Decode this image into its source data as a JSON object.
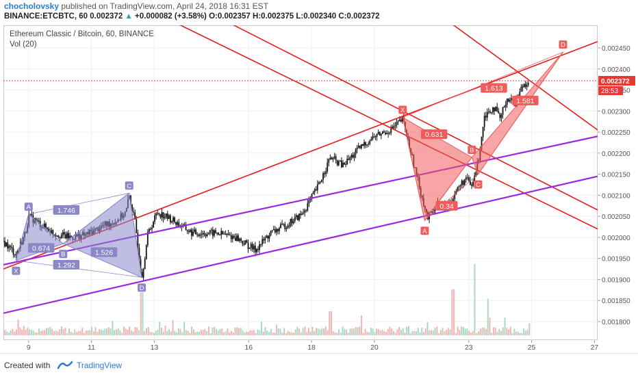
{
  "header": {
    "author": "chocholovsky",
    "published_text": "published on TradingView.com, April 24, 2018 16:31 EST",
    "symbol": "BINANCE:ETCBTC, 60",
    "last": "0.002372",
    "change": "+0.000082 (+3.58%)",
    "open_label": "O:",
    "open": "0.002357",
    "high_label": "H:",
    "high": "0.002375",
    "low_label": "L:",
    "low": "0.002340",
    "close_label": "C:",
    "close": "0.002372"
  },
  "legend": {
    "title": "Ethereum Classic / Bitcoin, 60, BINANCE",
    "volume": "Vol (20)"
  },
  "footer": {
    "created_with": "Created with",
    "brand": "TradingView"
  },
  "colors": {
    "candle": "#111111",
    "volume_up": "#a8d8c4",
    "volume_down": "#f3b3b3",
    "red_line": "#e41c1c",
    "purple_line": "#9c27e0",
    "blue_pattern": "#8a86c8",
    "red_pattern": "#f05b5b",
    "price_tag": "#e53935",
    "axis_text": "#555555"
  },
  "chart_data": {
    "type": "candlestick",
    "y_axis": {
      "min": 0.0018,
      "max": 0.00245,
      "side": "right",
      "ticks": [
        "0.002450",
        "0.002400",
        "0.002350",
        "0.002300",
        "0.002250",
        "0.002200",
        "0.002150",
        "0.002100",
        "0.002050",
        "0.002000",
        "0.001950",
        "0.001900",
        "0.001850",
        "0.001800"
      ]
    },
    "x_axis": {
      "unit": "April 2018 (day of month)",
      "start": 8.2,
      "end": 27.1,
      "ticks": [
        "9",
        "11",
        "13",
        "16",
        "18",
        "20",
        "23",
        "25",
        "27"
      ],
      "tick_days": [
        9,
        11,
        13,
        16,
        18,
        20,
        23,
        25,
        27
      ]
    },
    "current_price": "0.002372",
    "current_price_value": 0.002372,
    "countdown": "28:53",
    "price_path": [
      [
        8.2,
        0.00199
      ],
      [
        8.6,
        0.00196
      ],
      [
        8.9,
        0.00201
      ],
      [
        9.0,
        0.00205
      ],
      [
        9.4,
        0.00203
      ],
      [
        9.8,
        0.00201
      ],
      [
        10.3,
        0.002
      ],
      [
        10.8,
        0.002005
      ],
      [
        11.3,
        0.002025
      ],
      [
        11.8,
        0.00204
      ],
      [
        12.1,
        0.00206
      ],
      [
        12.2,
        0.0021
      ],
      [
        12.4,
        0.00203
      ],
      [
        12.6,
        0.001905
      ],
      [
        12.8,
        0.00201
      ],
      [
        13.1,
        0.00206
      ],
      [
        13.6,
        0.00204
      ],
      [
        14.2,
        0.00201
      ],
      [
        15.0,
        0.00201
      ],
      [
        15.6,
        0.002
      ],
      [
        16.2,
        0.00197
      ],
      [
        16.7,
        0.00201
      ],
      [
        17.2,
        0.00203
      ],
      [
        17.7,
        0.002055
      ],
      [
        18.2,
        0.00212
      ],
      [
        18.6,
        0.00219
      ],
      [
        19.0,
        0.00217
      ],
      [
        19.5,
        0.00221
      ],
      [
        20.0,
        0.00224
      ],
      [
        20.5,
        0.002255
      ],
      [
        20.9,
        0.00228
      ],
      [
        21.2,
        0.00219
      ],
      [
        21.5,
        0.0021
      ],
      [
        21.7,
        0.002045
      ],
      [
        22.0,
        0.00208
      ],
      [
        22.3,
        0.00207
      ],
      [
        22.6,
        0.00211
      ],
      [
        22.9,
        0.00214
      ],
      [
        23.1,
        0.00212
      ],
      [
        23.3,
        0.00218
      ],
      [
        23.5,
        0.00229
      ],
      [
        23.8,
        0.00231
      ],
      [
        24.0,
        0.00228
      ],
      [
        24.2,
        0.00233
      ],
      [
        24.5,
        0.00232
      ],
      [
        24.7,
        0.00236
      ],
      [
        24.9,
        0.002372
      ]
    ],
    "trend_lines": [
      {
        "color": "red",
        "from": [
          8.2,
          0.001925
        ],
        "to": [
          27.1,
          0.002465
        ]
      },
      {
        "color": "red",
        "from": [
          13.8,
          0.002505
        ],
        "to": [
          27.1,
          0.00202
        ]
      },
      {
        "color": "red",
        "from": [
          15.5,
          0.002505
        ],
        "to": [
          27.1,
          0.002065
        ]
      },
      {
        "color": "red",
        "from": [
          22.5,
          0.002505
        ],
        "to": [
          27.1,
          0.002255
        ]
      },
      {
        "color": "purple",
        "from": [
          8.2,
          0.001935
        ],
        "to": [
          27.1,
          0.00224
        ]
      },
      {
        "color": "purple",
        "from": [
          8.2,
          0.00182
        ],
        "to": [
          27.1,
          0.002145
        ]
      }
    ],
    "patterns": [
      {
        "color": "blue",
        "points": [
          {
            "label": "X",
            "day": 8.6,
            "price": 0.001945
          },
          {
            "label": "A",
            "day": 9.0,
            "price": 0.002055
          },
          {
            "label": "B",
            "day": 10.1,
            "price": 0.001985
          },
          {
            "label": "C",
            "day": 12.2,
            "price": 0.002105
          },
          {
            "label": "D",
            "day": 12.6,
            "price": 0.001905
          }
        ],
        "ratios": [
          {
            "text": "1.746",
            "day": 10.2,
            "price": 0.002065
          },
          {
            "text": "0.674",
            "day": 9.4,
            "price": 0.001975
          },
          {
            "text": "1.526",
            "day": 11.4,
            "price": 0.001965
          },
          {
            "text": "1.292",
            "day": 10.2,
            "price": 0.001935
          }
        ]
      },
      {
        "color": "red",
        "points": [
          {
            "label": "X",
            "day": 20.9,
            "price": 0.002285
          },
          {
            "label": "A",
            "day": 21.6,
            "price": 0.00204
          },
          {
            "label": "B",
            "day": 23.1,
            "price": 0.00219
          },
          {
            "label": "C",
            "day": 23.3,
            "price": 0.00215
          },
          {
            "label": "D",
            "day": 26.0,
            "price": 0.00244
          }
        ],
        "ratios": [
          {
            "text": "0.631",
            "day": 21.9,
            "price": 0.002245
          },
          {
            "text": "0.34",
            "day": 22.3,
            "price": 0.002075
          },
          {
            "text": "1.613",
            "day": 23.8,
            "price": 0.002355
          },
          {
            "text": "1.581",
            "day": 24.8,
            "price": 0.002325
          }
        ]
      }
    ],
    "volume": {
      "label": "Vol (20)",
      "spikes": [
        {
          "day": 12.6,
          "relative": 0.55
        },
        {
          "day": 18.6,
          "relative": 0.25
        },
        {
          "day": 22.5,
          "relative": 0.6
        },
        {
          "day": 23.2,
          "relative": 1.0
        },
        {
          "day": 23.6,
          "relative": 0.45
        }
      ]
    }
  }
}
